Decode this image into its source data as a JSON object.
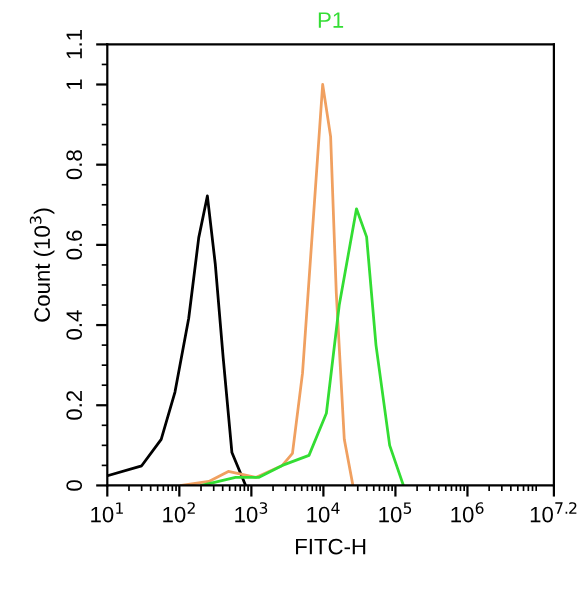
{
  "chart_data": {
    "type": "line",
    "title": "P1",
    "xlabel": "FITC-H",
    "ylabel": "Count (10$^{3}$)",
    "log": "x",
    "grid": false,
    "marker": "none",
    "line_style": "solid",
    "xlim": [
      10,
      15848932
    ],
    "xticks": [
      {
        "value": 10,
        "label": "10$^{1}$"
      },
      {
        "value": 100,
        "label": "10$^{2}$"
      },
      {
        "value": 1000,
        "label": "10$^{3}$"
      },
      {
        "value": 10000,
        "label": "10$^{4}$"
      },
      {
        "value": 100000,
        "label": "10$^{5}$"
      },
      {
        "value": 1000000,
        "label": "10$^{6}$"
      },
      {
        "value": 15848932,
        "label": "10$^{7.2}$"
      }
    ],
    "ylim": [
      0,
      1.1
    ],
    "yticks": [
      0,
      0.2,
      0.4,
      0.6,
      0.8,
      1,
      1.1
    ],
    "series": [
      {
        "color": "#000000",
        "x": [
          10,
          30,
          56,
          87,
          135,
          186,
          245,
          316,
          407,
          537,
          832
        ],
        "values": [
          0.024,
          0.049,
          0.115,
          0.233,
          0.417,
          0.618,
          0.722,
          0.551,
          0.317,
          0.082,
          0
        ]
      },
      {
        "color": "#f0a060",
        "x": [
          107,
          257,
          479,
          1150,
          2690,
          3720,
          5130,
          7080,
          9770,
          12600,
          15100,
          19500,
          25700
        ],
        "values": [
          0,
          0.01,
          0.035,
          0.02,
          0.05,
          0.08,
          0.28,
          0.64,
          1.0,
          0.87,
          0.48,
          0.115,
          0
        ]
      },
      {
        "color": "#33dd33",
        "x": [
          204,
          603,
          1260,
          2690,
          6310,
          11000,
          16600,
          28800,
          39800,
          53700,
          83200,
          129000
        ],
        "values": [
          0,
          0.02,
          0.02,
          0.05,
          0.075,
          0.18,
          0.45,
          0.69,
          0.62,
          0.35,
          0.1,
          0
        ]
      }
    ]
  }
}
